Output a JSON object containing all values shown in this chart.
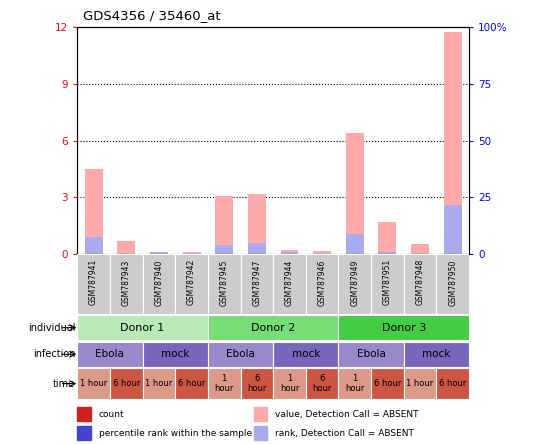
{
  "title": "GDS4356 / 35460_at",
  "samples": [
    "GSM787941",
    "GSM787943",
    "GSM787940",
    "GSM787942",
    "GSM787945",
    "GSM787947",
    "GSM787944",
    "GSM787946",
    "GSM787949",
    "GSM787951",
    "GSM787948",
    "GSM787950"
  ],
  "pink_bars": [
    4.5,
    0.7,
    0.1,
    0.15,
    3.1,
    3.2,
    0.25,
    0.2,
    6.4,
    1.7,
    0.55,
    11.7
  ],
  "blue_bars": [
    0.9,
    0.0,
    0.12,
    0.0,
    0.5,
    0.6,
    0.12,
    0.0,
    1.1,
    0.12,
    0.0,
    2.6
  ],
  "ylim_left": [
    0,
    12
  ],
  "yticks_left": [
    0,
    3,
    6,
    9,
    12
  ],
  "ylim_right": [
    0,
    100
  ],
  "yticks_right": [
    0,
    25,
    50,
    75,
    100
  ],
  "donor_groups": [
    {
      "label": "Donor 1",
      "start": 0,
      "end": 4,
      "color": "#b8eab8"
    },
    {
      "label": "Donor 2",
      "start": 4,
      "end": 8,
      "color": "#77dd77"
    },
    {
      "label": "Donor 3",
      "start": 8,
      "end": 12,
      "color": "#44cc44"
    }
  ],
  "infection_groups": [
    {
      "label": "Ebola",
      "start": 0,
      "end": 2,
      "color": "#9988cc"
    },
    {
      "label": "mock",
      "start": 2,
      "end": 4,
      "color": "#7766bb"
    },
    {
      "label": "Ebola",
      "start": 4,
      "end": 6,
      "color": "#9988cc"
    },
    {
      "label": "mock",
      "start": 6,
      "end": 8,
      "color": "#7766bb"
    },
    {
      "label": "Ebola",
      "start": 8,
      "end": 10,
      "color": "#9988cc"
    },
    {
      "label": "mock",
      "start": 10,
      "end": 12,
      "color": "#7766bb"
    }
  ],
  "time_groups": [
    {
      "label": "1 hour",
      "start": 0,
      "end": 1,
      "color": "#dd9988"
    },
    {
      "label": "6 hour",
      "start": 1,
      "end": 2,
      "color": "#cc5544"
    },
    {
      "label": "1 hour",
      "start": 2,
      "end": 3,
      "color": "#dd9988"
    },
    {
      "label": "6 hour",
      "start": 3,
      "end": 4,
      "color": "#cc5544"
    },
    {
      "label": "1\nhour",
      "start": 4,
      "end": 5,
      "color": "#dd9988"
    },
    {
      "label": "6\nhour",
      "start": 5,
      "end": 6,
      "color": "#cc5544"
    },
    {
      "label": "1\nhour",
      "start": 6,
      "end": 7,
      "color": "#dd9988"
    },
    {
      "label": "6\nhour",
      "start": 7,
      "end": 8,
      "color": "#cc5544"
    },
    {
      "label": "1\nhour",
      "start": 8,
      "end": 9,
      "color": "#dd9988"
    },
    {
      "label": "6 hour",
      "start": 9,
      "end": 10,
      "color": "#cc5544"
    },
    {
      "label": "1 hour",
      "start": 10,
      "end": 11,
      "color": "#dd9988"
    },
    {
      "label": "6 hour",
      "start": 11,
      "end": 12,
      "color": "#cc5544"
    }
  ],
  "row_labels": [
    "individual",
    "infection",
    "time"
  ],
  "bar_color_pink": "#ffaaaa",
  "bar_color_blue": "#aaaaee",
  "sample_bg_color": "#cccccc"
}
